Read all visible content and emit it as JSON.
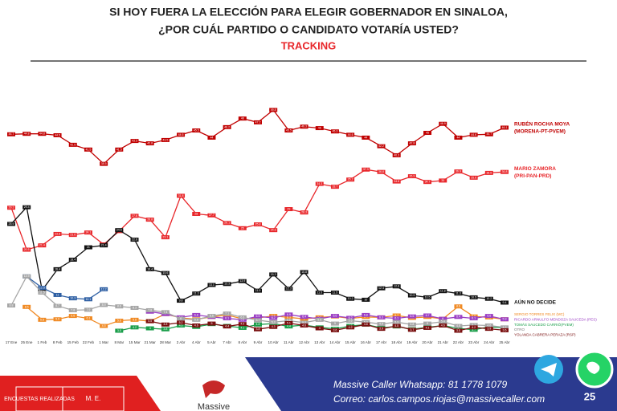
{
  "chart_data": {
    "type": "line",
    "title": "SI HOY FUERA LA ELECCIÓN PARA ELEGIR GOBERNADOR EN SINALOA,",
    "subtitle": "¿POR CUÁL PARTIDO O CANDIDATO VOTARÍA USTED?",
    "tag": "TRACKING",
    "categories": [
      "17 Ene",
      "25 Ene",
      "1 Feb",
      "8 Feb",
      "15 Feb",
      "22 Feb",
      "1 Mar",
      "8 Mar",
      "15 Mar",
      "21 Mar",
      "28 Mar",
      "2 Abr",
      "4 Abr",
      "5 Abr",
      "7 Abr",
      "8 Abr",
      "9 Abr",
      "10 Abr",
      "11 Abr",
      "12 Abr",
      "13 Abr",
      "14 Abr",
      "15 Abr",
      "16 Abr",
      "17 Abr",
      "18 Abr",
      "19 Abr",
      "20 Abr",
      "21 Abr",
      "22 Abr",
      "23 Abr",
      "24 Abr",
      "25 Abr"
    ],
    "series": [
      {
        "name": "RUBÉN ROCHA MOYA",
        "coalition": "(MORENA-PT-PVEM)",
        "color": "#c00000",
        "values": [
          44.7,
          44.8,
          44.8,
          44.5,
          42.5,
          41.5,
          38.5,
          41.5,
          43.3,
          42.8,
          43.5,
          44.6,
          45.5,
          44.0,
          46.2,
          48.0,
          47.2,
          49.8,
          45.5,
          46.3,
          46.0,
          45.3,
          44.6,
          44.0,
          42.2,
          40.3,
          42.8,
          45.0,
          46.9,
          44.0,
          44.6,
          44.7,
          46.1
        ]
      },
      {
        "name": "MARIO ZAMORA",
        "coalition": "(PRI-PAN-PRD)",
        "color": "#e8262a",
        "values": [
          29.3,
          20.5,
          21.4,
          23.8,
          23.6,
          24.1,
          21.6,
          24.4,
          27.6,
          26.8,
          23.1,
          31.8,
          28.0,
          27.7,
          26.1,
          25.0,
          25.8,
          24.6,
          29.0,
          28.3,
          34.3,
          33.7,
          35.2,
          37.3,
          36.8,
          34.8,
          35.9,
          34.7,
          35.0,
          36.9,
          35.6,
          36.6,
          36.8
        ]
      },
      {
        "name": "AÚN NO DECIDE",
        "color": "#111111",
        "values": [
          25.9,
          29.4,
          12.0,
          16.4,
          18.4,
          21.0,
          21.4,
          24.6,
          22.6,
          16.4,
          15.6,
          9.8,
          11.3,
          13.1,
          13.3,
          13.9,
          11.9,
          15.3,
          12.3,
          15.8,
          11.5,
          11.5,
          10.2,
          10.0,
          12.4,
          12.8,
          10.9,
          10.5,
          11.8,
          11.3,
          10.5,
          10.2,
          9.4
        ]
      },
      {
        "color": "#2e5fa3",
        "values": [
          null,
          14.9,
          12.5,
          11.0,
          10.3,
          10.1,
          12.2,
          null,
          null,
          null,
          null,
          null,
          null,
          null,
          null,
          null,
          null,
          null,
          null,
          null,
          null,
          null,
          null,
          null,
          null,
          null,
          null,
          null,
          null,
          null,
          null,
          null,
          null
        ]
      },
      {
        "name": "SERGIO TORRES FELIX (MC)",
        "color": "#f08a24",
        "values": [
          null,
          8.5,
          5.8,
          5.9,
          6.6,
          6.1,
          4.5,
          5.6,
          5.8,
          5.5,
          7.0,
          6.2,
          5.9,
          6.4,
          6.8,
          6.0,
          6.2,
          6.6,
          6.3,
          6.0,
          6.3,
          6.5,
          6.1,
          6.4,
          6.3,
          6.7,
          6.2,
          6.4,
          6.0,
          8.6,
          6.5,
          6.3,
          5.9
        ]
      },
      {
        "name": "RICARDO ARNULFO MENDOZA SAUCEDA (PES)",
        "color": "#9b3fc4",
        "values": [
          null,
          null,
          null,
          null,
          null,
          null,
          null,
          null,
          null,
          7.5,
          7.0,
          6.3,
          6.8,
          6.4,
          6.1,
          5.8,
          6.5,
          6.2,
          6.9,
          6.4,
          6.0,
          6.6,
          6.2,
          6.8,
          6.3,
          6.1,
          6.5,
          6.7,
          6.0,
          6.4,
          6.1,
          6.6,
          5.9
        ]
      },
      {
        "name": "TOMÁS SAUCEDO CARRIÓ(PVEM)",
        "color": "#1a9e4a",
        "values": [
          null,
          null,
          null,
          null,
          null,
          null,
          null,
          3.5,
          4.2,
          4.0,
          3.8,
          4.6,
          4.3,
          4.9,
          4.5,
          4.1,
          4.8,
          5.0,
          4.4,
          4.7,
          4.2,
          3.9,
          4.5,
          4.8,
          4.1,
          4.4,
          3.8,
          4.2,
          4.6,
          4.0,
          3.7,
          4.3,
          4.1
        ]
      },
      {
        "name": "OTRO",
        "color": "#a6a6a6",
        "values": [
          8.8,
          14.9,
          11.5,
          8.7,
          7.8,
          7.9,
          8.9,
          8.6,
          8.3,
          7.8,
          7.4,
          6.0,
          5.8,
          6.6,
          7.1,
          6.3,
          5.7,
          5.3,
          5.6,
          5.2,
          5.8,
          5.0,
          5.6,
          5.3,
          4.9,
          5.3,
          4.8,
          5.0,
          5.4,
          4.5,
          4.7,
          4.6,
          4.2
        ]
      },
      {
        "name": "YOLANDA CABRERA PERAZA (RSP)",
        "color": "#7a1010",
        "values": [
          null,
          null,
          null,
          null,
          null,
          null,
          null,
          null,
          null,
          5.5,
          4.8,
          5.2,
          4.6,
          5.0,
          4.4,
          4.9,
          3.8,
          4.3,
          5.1,
          4.6,
          4.0,
          3.6,
          4.2,
          4.8,
          3.9,
          4.5,
          3.7,
          4.1,
          4.6,
          3.5,
          4.2,
          3.9,
          3.6
        ]
      }
    ]
  },
  "footer": {
    "box_label": "ENCUESTAS REALIZADAS",
    "box_value": "M. E.",
    "logo": "Massive",
    "whatsapp": "Massive Caller Whatsapp: 81 1778 1079",
    "email": "Correo: carlos.campos.riojas@massivecaller.com",
    "page": "25"
  }
}
